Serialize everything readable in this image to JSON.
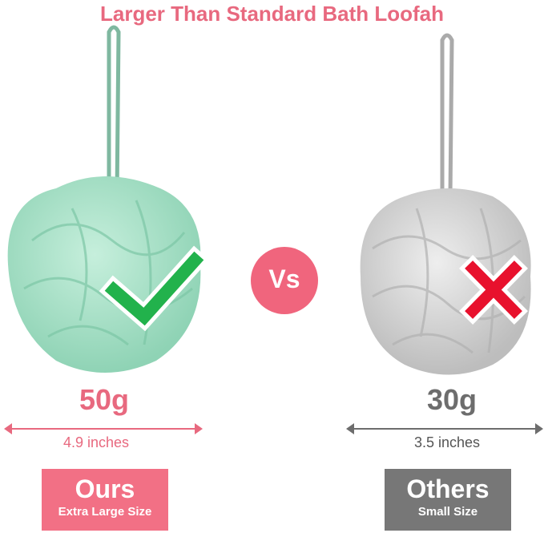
{
  "title": "Larger Than Standard Bath Loofah",
  "vs_label": "Vs",
  "ours": {
    "weight": "50g",
    "size": "4.9 inches",
    "label": "Ours",
    "sublabel": "Extra Large Size",
    "color": "#f27085",
    "loofah_color": "#a8e0c8",
    "mark": "check-icon"
  },
  "others": {
    "weight": "30g",
    "size": "3.5 inches",
    "label": "Others",
    "sublabel": "Small Size",
    "color": "#777777",
    "loofah_color": "#d4d4d4",
    "mark": "cross-icon"
  },
  "colors": {
    "accent": "#e8697f",
    "check": "#22b24c",
    "cross": "#e8112d"
  }
}
